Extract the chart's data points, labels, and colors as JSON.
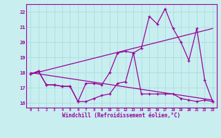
{
  "xlabel": "Windchill (Refroidissement éolien,°C)",
  "bg_color": "#c8eef0",
  "line_color": "#990099",
  "grid_color": "#aadddd",
  "xlim": [
    -0.5,
    23.5
  ],
  "ylim": [
    15.7,
    22.5
  ],
  "xticks": [
    0,
    1,
    2,
    3,
    4,
    5,
    6,
    7,
    8,
    9,
    10,
    11,
    12,
    13,
    14,
    15,
    16,
    17,
    18,
    19,
    20,
    21,
    22,
    23
  ],
  "yticks": [
    16,
    17,
    18,
    19,
    20,
    21,
    22
  ],
  "curve1_x": [
    0,
    1,
    2,
    3,
    4,
    5,
    6,
    7,
    8,
    9,
    10,
    11,
    12,
    13,
    14,
    15,
    16,
    17,
    18,
    19,
    20,
    21,
    22,
    23
  ],
  "curve1_y": [
    17.9,
    18.1,
    17.2,
    17.2,
    17.1,
    17.1,
    16.1,
    16.1,
    16.3,
    16.5,
    16.6,
    17.3,
    17.4,
    19.3,
    16.6,
    16.6,
    16.6,
    16.6,
    16.6,
    16.3,
    16.2,
    16.1,
    16.2,
    16.1
  ],
  "curve2_x": [
    0,
    1,
    2,
    3,
    4,
    5,
    6,
    7,
    8,
    9,
    10,
    11,
    12,
    13,
    14,
    15,
    16,
    17,
    18,
    19,
    20,
    21,
    22,
    23
  ],
  "curve2_y": [
    17.9,
    18.1,
    17.2,
    17.2,
    17.1,
    17.1,
    16.1,
    17.3,
    17.3,
    17.2,
    18.0,
    19.3,
    19.4,
    19.3,
    19.6,
    21.7,
    21.2,
    22.2,
    20.9,
    20.0,
    18.8,
    20.9,
    17.5,
    16.1
  ],
  "line1_x": [
    0,
    23
  ],
  "line1_y": [
    17.9,
    20.9
  ],
  "line2_x": [
    0,
    23
  ],
  "line2_y": [
    18.0,
    16.2
  ]
}
